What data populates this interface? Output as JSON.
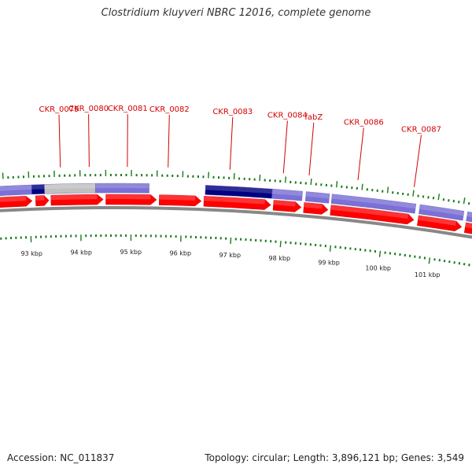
{
  "title": "Clostridium kluyveri NBRC 12016, complete genome",
  "footer": {
    "accession": "Accession: NC_011837",
    "topology": "Topology: circular; Length: 3,896,121 bp; Genes: 3,549"
  },
  "colors": {
    "cds_forward": "#ff0000",
    "feature_blue": "#7a70d6",
    "feature_navy": "#000080",
    "feature_gray": "#c0c0c0",
    "backbone": "#888888",
    "tick": "#1a7a1a",
    "label": "#d40000"
  },
  "gene_labels": [
    {
      "name": "CKR_0079",
      "kbp": 93.62
    },
    {
      "name": "CKR_0080",
      "kbp": 94.18
    },
    {
      "name": "CKR_0081",
      "kbp": 94.92
    },
    {
      "name": "CKR_0082",
      "kbp": 95.71
    },
    {
      "name": "CKR_0083",
      "kbp": 96.91
    },
    {
      "name": "CKR_0084",
      "kbp": 97.95
    },
    {
      "name": "fabZ",
      "kbp": 98.45
    },
    {
      "name": "CKR_0086",
      "kbp": 99.4
    },
    {
      "name": "CKR_0087",
      "kbp": 100.5
    }
  ],
  "red_arrows": [
    {
      "start": 92.3,
      "end": 93.05
    },
    {
      "start": 93.12,
      "end": 93.38
    },
    {
      "start": 93.42,
      "end": 94.45
    },
    {
      "start": 94.5,
      "end": 95.5
    },
    {
      "start": 95.55,
      "end": 96.38
    },
    {
      "start": 96.43,
      "end": 97.75
    },
    {
      "start": 97.8,
      "end": 98.35
    },
    {
      "start": 98.4,
      "end": 98.88
    },
    {
      "start": 98.93,
      "end": 100.58
    },
    {
      "start": 100.66,
      "end": 101.53
    },
    {
      "start": 101.6,
      "end": 102.4
    }
  ],
  "feature_bars": [
    {
      "start": 92.3,
      "end": 93.05,
      "kind": "blue"
    },
    {
      "start": 93.05,
      "end": 93.3,
      "kind": "navy"
    },
    {
      "start": 93.3,
      "end": 94.3,
      "kind": "gray"
    },
    {
      "start": 94.3,
      "end": 95.35,
      "kind": "blue"
    },
    {
      "start": 96.45,
      "end": 97.76,
      "kind": "navy"
    },
    {
      "start": 97.76,
      "end": 98.35,
      "kind": "blue"
    },
    {
      "start": 98.42,
      "end": 98.88,
      "kind": "blue"
    },
    {
      "start": 98.93,
      "end": 100.58,
      "kind": "blue"
    },
    {
      "start": 100.66,
      "end": 101.53,
      "kind": "blue"
    },
    {
      "start": 101.6,
      "end": 102.4,
      "kind": "blue"
    }
  ],
  "kbp_ticks": [
    {
      "label": "93 kbp",
      "kbp": 93
    },
    {
      "label": "94 kbp",
      "kbp": 94
    },
    {
      "label": "95 kbp",
      "kbp": 95
    },
    {
      "label": "96 kbp",
      "kbp": 96
    },
    {
      "label": "97 kbp",
      "kbp": 97
    },
    {
      "label": "98 kbp",
      "kbp": 98
    },
    {
      "label": "99 kbp",
      "kbp": 99
    },
    {
      "label": "100 kbp",
      "kbp": 100
    },
    {
      "label": "101 kbp",
      "kbp": 101
    }
  ]
}
